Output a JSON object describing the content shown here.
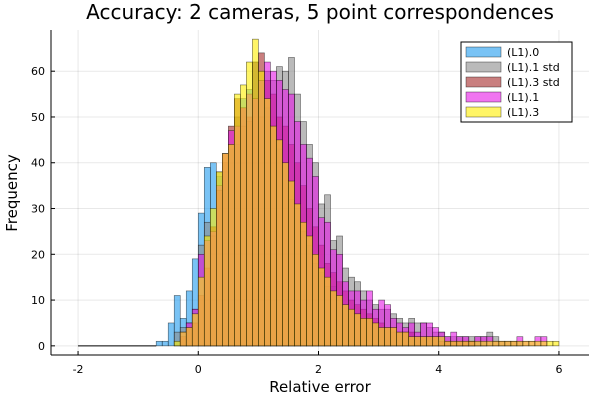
{
  "chart_data": {
    "type": "bar",
    "subtype": "overlaid-histogram",
    "title": "Accuracy: 2 cameras, 5 point correspondences",
    "xlabel": "Relative error",
    "ylabel": "Frequency",
    "xlim": [
      -2.45,
      6.5
    ],
    "ylim": [
      -2,
      69
    ],
    "xticks": [
      -2,
      0,
      2,
      4,
      6
    ],
    "xtick_labels": [
      "-2",
      "0",
      "2",
      "4",
      "6"
    ],
    "yticks": [
      0,
      10,
      20,
      30,
      40,
      50,
      60
    ],
    "ytick_labels": [
      "0",
      "10",
      "20",
      "30",
      "40",
      "50",
      "60"
    ],
    "grid": true,
    "legend_position": "top-right",
    "bin_width": 0.1,
    "baseline_segment": [
      -2.0,
      -0.7
    ],
    "bins": [
      -0.7,
      -0.6,
      -0.5,
      -0.4,
      -0.3,
      -0.2,
      -0.1,
      0.0,
      0.1,
      0.2,
      0.3,
      0.4,
      0.5,
      0.6,
      0.7,
      0.8,
      0.9,
      1.0,
      1.1,
      1.2,
      1.3,
      1.4,
      1.5,
      1.6,
      1.7,
      1.8,
      1.9,
      2.0,
      2.1,
      2.2,
      2.3,
      2.4,
      2.5,
      2.6,
      2.7,
      2.8,
      2.9,
      3.0,
      3.1,
      3.2,
      3.3,
      3.4,
      3.5,
      3.6,
      3.7,
      3.8,
      3.9,
      4.0,
      4.1,
      4.2,
      4.3,
      4.4,
      4.5,
      4.6,
      4.7,
      4.8,
      4.9,
      5.0,
      5.1,
      5.2,
      5.3,
      5.4,
      5.5,
      5.6,
      5.7,
      5.8,
      5.9
    ],
    "series": [
      {
        "name": "(L1).0",
        "color": "#1f9bef",
        "values": [
          1,
          1,
          5,
          11,
          6,
          12,
          19,
          29,
          39,
          40,
          37,
          38,
          43,
          44,
          54,
          56,
          62,
          58,
          52,
          48,
          43,
          40,
          32,
          30,
          25,
          22,
          18,
          16,
          13,
          13,
          10,
          9,
          8,
          7,
          6,
          6,
          5,
          4,
          4,
          3,
          3,
          3,
          3,
          2,
          2,
          2,
          2,
          2,
          1,
          1,
          1,
          1,
          1,
          1,
          1,
          0,
          0,
          0,
          0,
          0,
          0,
          0,
          0,
          0,
          0,
          0,
          0
        ]
      },
      {
        "name": "(L1).1 std",
        "color": "#8c8c8c",
        "values": [
          0,
          0,
          0,
          3,
          4,
          5,
          8,
          22,
          27,
          24,
          38,
          40,
          44,
          50,
          48,
          49,
          54,
          50,
          60,
          58,
          61,
          60,
          63,
          55,
          49,
          44,
          40,
          31,
          33,
          23,
          24,
          17,
          15,
          14,
          12,
          10,
          9,
          8,
          8,
          7,
          6,
          5,
          6,
          5,
          5,
          4,
          3,
          3,
          2,
          2,
          2,
          2,
          2,
          2,
          2,
          3,
          2,
          1,
          1,
          1,
          1,
          0,
          0,
          0,
          0,
          0,
          0
        ]
      },
      {
        "name": "(L1).3 std",
        "color": "#a52a2a",
        "values": [
          0,
          0,
          0,
          0,
          2,
          4,
          5,
          11,
          17,
          26,
          34,
          42,
          48,
          54,
          52,
          50,
          62,
          64,
          58,
          55,
          50,
          48,
          44,
          40,
          35,
          30,
          26,
          22,
          18,
          16,
          14,
          12,
          10,
          9,
          8,
          7,
          6,
          5,
          4,
          4,
          3,
          3,
          3,
          2,
          2,
          2,
          2,
          1,
          1,
          1,
          1,
          1,
          1,
          0,
          0,
          0,
          0,
          0,
          0,
          0,
          0,
          0,
          0,
          0,
          0,
          0,
          0
        ]
      },
      {
        "name": "(L1).1",
        "color": "#e617e6",
        "values": [
          0,
          0,
          0,
          0,
          3,
          5,
          8,
          20,
          23,
          25,
          35,
          42,
          47,
          48,
          52,
          55,
          54,
          58,
          62,
          60,
          58,
          56,
          55,
          49,
          44,
          41,
          37,
          28,
          27,
          21,
          20,
          14,
          12,
          12,
          10,
          12,
          8,
          10,
          9,
          6,
          5,
          4,
          5,
          3,
          5,
          5,
          4,
          3,
          2,
          3,
          2,
          2,
          1,
          2,
          2,
          2,
          1,
          1,
          1,
          1,
          2,
          1,
          1,
          2,
          2,
          0,
          0
        ]
      },
      {
        "name": "(L1).3",
        "color": "#ffee00",
        "values": [
          0,
          0,
          0,
          1,
          3,
          4,
          7,
          15,
          24,
          30,
          38,
          42,
          44,
          55,
          57,
          62,
          67,
          60,
          54,
          48,
          45,
          40,
          36,
          31,
          27,
          24,
          20,
          17,
          15,
          12,
          11,
          9,
          8,
          7,
          6,
          6,
          5,
          4,
          4,
          4,
          3,
          3,
          2,
          2,
          2,
          2,
          2,
          2,
          1,
          1,
          1,
          1,
          1,
          1,
          1,
          1,
          1,
          1,
          1,
          1,
          1,
          1,
          1,
          1,
          1,
          1,
          1
        ]
      }
    ]
  }
}
